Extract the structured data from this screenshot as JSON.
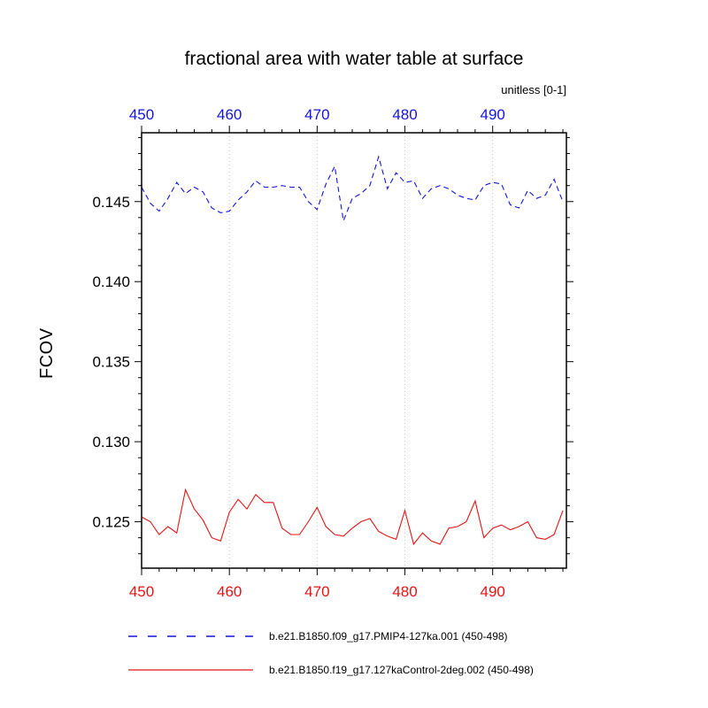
{
  "title_block": {
    "title": "fractional area with water table at surface",
    "axis_note": "unitless [0-1]"
  },
  "colors": {
    "series1": "#1414dc",
    "series2": "#e41414",
    "grid": "#c0c0c0",
    "frame": "#000000",
    "tick_label_top": "#1414dc",
    "tick_label_bottom": "#e41414",
    "tick_label_left": "#000000"
  },
  "chart_data": {
    "type": "line",
    "title": "fractional area with water table at surface",
    "xlabel": "",
    "ylabel": "FCOV",
    "xlim": [
      450,
      498.4
    ],
    "ylim": [
      0.1221,
      0.1493
    ],
    "x_major_ticks": [
      450,
      460,
      470,
      480,
      490
    ],
    "x_tick_labels": [
      "450",
      "460",
      "470",
      "480",
      "490"
    ],
    "x_minor_step": 2,
    "y_major_ticks": [
      0.125,
      0.13,
      0.135,
      0.14,
      0.145
    ],
    "y_tick_labels": [
      "0.125",
      "0.130",
      "0.135",
      "0.140",
      "0.145"
    ],
    "y_minor_step": 0.001,
    "grid_x": [
      460,
      470,
      480,
      490
    ],
    "grid_on": "vertical-dotted",
    "legend_position": "below",
    "x": [
      450,
      451,
      452,
      453,
      454,
      455,
      456,
      457,
      458,
      459,
      460,
      461,
      462,
      463,
      464,
      465,
      466,
      467,
      468,
      469,
      470,
      471,
      472,
      473,
      474,
      475,
      476,
      477,
      478,
      479,
      480,
      481,
      482,
      483,
      484,
      485,
      486,
      487,
      488,
      489,
      490,
      491,
      492,
      493,
      494,
      495,
      496,
      497,
      498
    ],
    "series": [
      {
        "name": "b.e21.B1850.f09_g17.PMIP4-127ka.001 (450-498)",
        "style": "dashed",
        "color": "#1414dc",
        "values": [
          0.1459,
          0.1449,
          0.1444,
          0.1452,
          0.1462,
          0.1455,
          0.1459,
          0.1456,
          0.1446,
          0.1443,
          0.1444,
          0.1451,
          0.1456,
          0.1463,
          0.1459,
          0.1459,
          0.146,
          0.1459,
          0.1459,
          0.145,
          0.1445,
          0.1461,
          0.1472,
          0.1438,
          0.1452,
          0.1455,
          0.146,
          0.1478,
          0.1458,
          0.1468,
          0.1462,
          0.1463,
          0.1452,
          0.1458,
          0.146,
          0.1458,
          0.1454,
          0.1452,
          0.1451,
          0.146,
          0.1462,
          0.1461,
          0.1448,
          0.1446,
          0.1457,
          0.1452,
          0.1454,
          0.1464,
          0.145
        ]
      },
      {
        "name": "b.e21.B1850.f19_g17.127kaControl-2deg.002 (450-498)",
        "style": "solid",
        "color": "#e41414",
        "values": [
          0.1253,
          0.125,
          0.1242,
          0.1247,
          0.1243,
          0.127,
          0.1258,
          0.1251,
          0.124,
          0.1238,
          0.1256,
          0.1264,
          0.1258,
          0.1267,
          0.1262,
          0.1262,
          0.1246,
          0.1242,
          0.1242,
          0.125,
          0.1259,
          0.1247,
          0.1242,
          0.1241,
          0.1246,
          0.125,
          0.1252,
          0.1244,
          0.1241,
          0.1239,
          0.1257,
          0.1236,
          0.1243,
          0.1238,
          0.1236,
          0.1246,
          0.1247,
          0.125,
          0.1263,
          0.124,
          0.1246,
          0.1248,
          0.1245,
          0.1247,
          0.125,
          0.124,
          0.1239,
          0.1242,
          0.1257
        ]
      }
    ]
  }
}
